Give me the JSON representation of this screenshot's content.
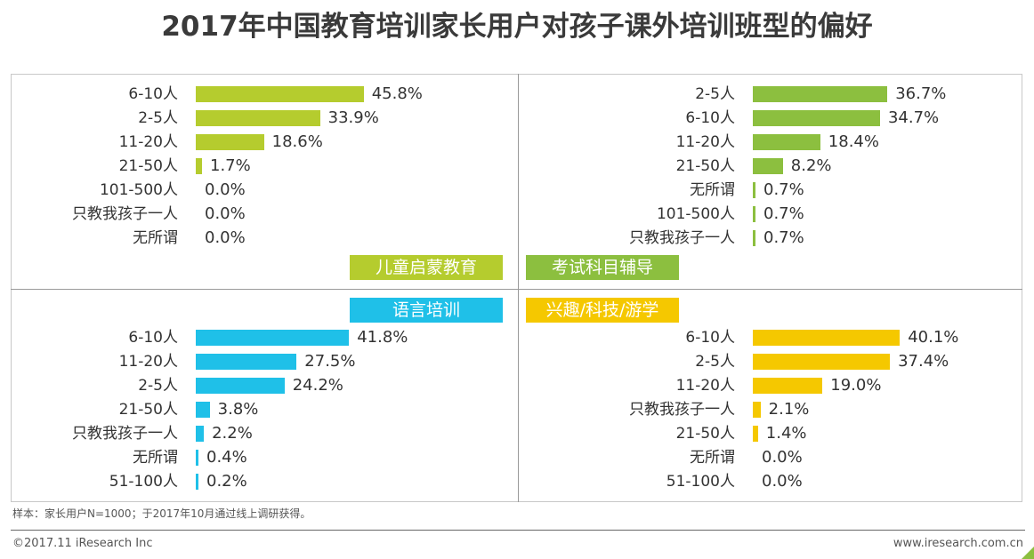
{
  "title": "2017年中国教育培训家长用户对孩子课外培训班型的偏好",
  "footer": {
    "note": "样本：家长用户N=1000；于2017年10月通过线上调研获得。",
    "copyright": "©2017.11 iResearch Inc",
    "website": "www.iresearch.com.cn"
  },
  "chart_data": [
    {
      "type": "bar",
      "orientation": "horizontal",
      "title": "儿童启蒙教育",
      "color": "#b5cc2e",
      "unit": "%",
      "categories": [
        "6-10人",
        "2-5人",
        "11-20人",
        "21-50人",
        "101-500人",
        "只教我孩子一人",
        "无所谓"
      ],
      "values": [
        45.8,
        33.9,
        18.6,
        1.7,
        0.0,
        0.0,
        0.0
      ],
      "labels": [
        "45.8%",
        "33.9%",
        "18.6%",
        "1.7%",
        "0.0%",
        "0.0%",
        "0.0%"
      ]
    },
    {
      "type": "bar",
      "orientation": "horizontal",
      "title": "考试科目辅导",
      "color": "#8cbf3f",
      "unit": "%",
      "categories": [
        "2-5人",
        "6-10人",
        "11-20人",
        "21-50人",
        "无所谓",
        "101-500人",
        "只教我孩子一人"
      ],
      "values": [
        36.7,
        34.7,
        18.4,
        8.2,
        0.7,
        0.7,
        0.7
      ],
      "labels": [
        "36.7%",
        "34.7%",
        "18.4%",
        "8.2%",
        "0.7%",
        "0.7%",
        "0.7%"
      ]
    },
    {
      "type": "bar",
      "orientation": "horizontal",
      "title": "语言培训",
      "color": "#1fc0e8",
      "unit": "%",
      "categories": [
        "6-10人",
        "11-20人",
        "2-5人",
        "21-50人",
        "只教我孩子一人",
        "无所谓",
        "51-100人"
      ],
      "values": [
        41.8,
        27.5,
        24.2,
        3.8,
        2.2,
        0.4,
        0.2
      ],
      "labels": [
        "41.8%",
        "27.5%",
        "24.2%",
        "3.8%",
        "2.2%",
        "0.4%",
        "0.2%"
      ]
    },
    {
      "type": "bar",
      "orientation": "horizontal",
      "title": "兴趣/科技/游学",
      "color": "#f5c800",
      "unit": "%",
      "categories": [
        "6-10人",
        "2-5人",
        "11-20人",
        "只教我孩子一人",
        "21-50人",
        "无所谓",
        "51-100人"
      ],
      "values": [
        40.1,
        37.4,
        19.0,
        2.1,
        1.4,
        0.0,
        0.0
      ],
      "labels": [
        "40.1%",
        "37.4%",
        "19.0%",
        "2.1%",
        "1.4%",
        "0.0%",
        "0.0%"
      ]
    }
  ]
}
